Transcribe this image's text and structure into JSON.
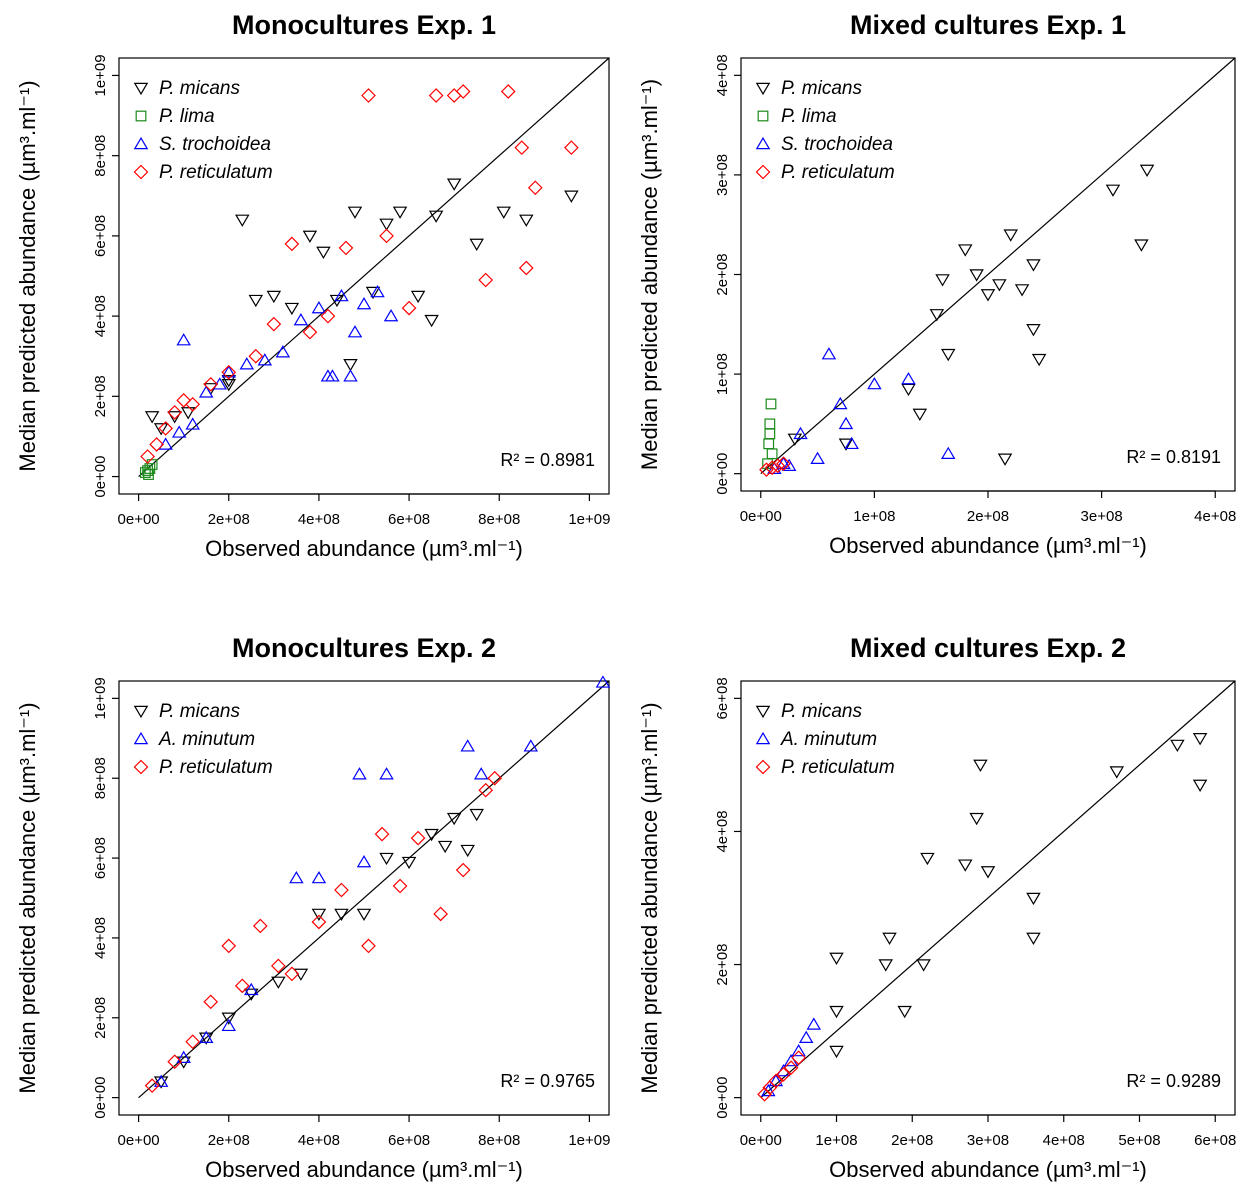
{
  "chart_data": [
    {
      "type": "scatter",
      "title": "Monocultures Exp. 1",
      "xlabel": "Observed abundance (µm³.ml⁻¹)",
      "ylabel": "Median predicted abundance (µm³.ml⁻¹)",
      "xlim": [
        0,
        1000000000
      ],
      "ylim": [
        0,
        1000000000
      ],
      "xticks": [
        "0e+00",
        "2e+08",
        "4e+08",
        "6e+08",
        "8e+08",
        "1e+09"
      ],
      "yticks": [
        "0e+00",
        "2e+08",
        "4e+08",
        "6e+08",
        "8e+08",
        "1e+09"
      ],
      "r2": "0.8981",
      "legend_position": "top-left",
      "series": [
        {
          "name": "P. micans",
          "color": "#000000",
          "marker": "triangle-down",
          "x": [
            30000000.0,
            50000000.0,
            80000000.0,
            110000000.0,
            160000000.0,
            200000000.0,
            230000000.0,
            260000000.0,
            300000000.0,
            340000000.0,
            380000000.0,
            410000000.0,
            440000000.0,
            480000000.0,
            520000000.0,
            550000000.0,
            580000000.0,
            620000000.0,
            660000000.0,
            700000000.0,
            750000000.0,
            810000000.0,
            860000000.0,
            960000000.0,
            200000000.0,
            470000000.0,
            650000000.0
          ],
          "y": [
            150000000.0,
            120000000.0,
            150000000.0,
            160000000.0,
            220000000.0,
            240000000.0,
            640000000.0,
            440000000.0,
            450000000.0,
            420000000.0,
            600000000.0,
            560000000.0,
            440000000.0,
            660000000.0,
            460000000.0,
            630000000.0,
            660000000.0,
            450000000.0,
            650000000.0,
            730000000.0,
            580000000.0,
            660000000.0,
            640000000.0,
            700000000.0,
            230000000.0,
            280000000.0,
            390000000.0
          ]
        },
        {
          "name": "P. lima",
          "color": "#1a8a1a",
          "marker": "square",
          "x": [
            15000000.0,
            20000000.0,
            25000000.0,
            30000000.0,
            22000000.0
          ],
          "y": [
            10000000.0,
            15000000.0,
            20000000.0,
            30000000.0,
            5000000.0
          ]
        },
        {
          "name": "S. trochoidea",
          "color": "#0000ff",
          "marker": "triangle-up",
          "x": [
            60000000.0,
            90000000.0,
            100000000.0,
            120000000.0,
            150000000.0,
            180000000.0,
            200000000.0,
            240000000.0,
            280000000.0,
            320000000.0,
            360000000.0,
            400000000.0,
            420000000.0,
            450000000.0,
            480000000.0,
            500000000.0,
            530000000.0,
            560000000.0,
            430000000.0,
            470000000.0
          ],
          "y": [
            80000000.0,
            110000000.0,
            340000000.0,
            130000000.0,
            210000000.0,
            230000000.0,
            260000000.0,
            280000000.0,
            290000000.0,
            310000000.0,
            390000000.0,
            420000000.0,
            250000000.0,
            450000000.0,
            360000000.0,
            430000000.0,
            460000000.0,
            400000000.0,
            250000000.0,
            250000000.0
          ]
        },
        {
          "name": "P. reticulatum",
          "color": "#ff0000",
          "marker": "diamond",
          "x": [
            20000000.0,
            40000000.0,
            60000000.0,
            80000000.0,
            100000000.0,
            120000000.0,
            160000000.0,
            200000000.0,
            260000000.0,
            300000000.0,
            340000000.0,
            380000000.0,
            420000000.0,
            460000000.0,
            510000000.0,
            550000000.0,
            600000000.0,
            660000000.0,
            700000000.0,
            720000000.0,
            820000000.0,
            850000000.0,
            880000000.0,
            960000000.0,
            770000000.0,
            860000000.0
          ],
          "y": [
            50000000.0,
            80000000.0,
            120000000.0,
            160000000.0,
            190000000.0,
            180000000.0,
            230000000.0,
            260000000.0,
            300000000.0,
            380000000.0,
            580000000.0,
            360000000.0,
            400000000.0,
            570000000.0,
            950000000.0,
            600000000.0,
            420000000.0,
            950000000.0,
            950000000.0,
            960000000.0,
            960000000.0,
            820000000.0,
            720000000.0,
            820000000.0,
            490000000.0,
            520000000.0
          ]
        }
      ]
    },
    {
      "type": "scatter",
      "title": "Mixed cultures Exp. 1",
      "xlabel": "Observed abundance (µm³.ml⁻¹)",
      "ylabel": "Median predicted abundance (µm³.ml⁻¹)",
      "xlim": [
        0,
        400000000
      ],
      "ylim": [
        0,
        400000000
      ],
      "xticks": [
        "0e+00",
        "1e+08",
        "2e+08",
        "3e+08",
        "4e+08"
      ],
      "yticks": [
        "0e+00",
        "1e+08",
        "2e+08",
        "3e+08",
        "4e+08"
      ],
      "r2": "0.8191",
      "legend_position": "top-left",
      "series": [
        {
          "name": "P. micans",
          "color": "#000000",
          "marker": "triangle-down",
          "x": [
            30000000.0,
            75000000.0,
            130000000.0,
            140000000.0,
            155000000.0,
            160000000.0,
            165000000.0,
            180000000.0,
            190000000.0,
            200000000.0,
            210000000.0,
            220000000.0,
            230000000.0,
            240000000.0,
            245000000.0,
            310000000.0,
            340000000.0,
            335000000.0,
            215000000.0,
            240000000.0
          ],
          "y": [
            35000000.0,
            30000000.0,
            85000000.0,
            60000000.0,
            160000000.0,
            195000000.0,
            120000000.0,
            225000000.0,
            200000000.0,
            180000000.0,
            190000000.0,
            240000000.0,
            185000000.0,
            210000000.0,
            115000000.0,
            285000000.0,
            305000000.0,
            230000000.0,
            15000000.0,
            145000000.0
          ]
        },
        {
          "name": "P. lima",
          "color": "#1a8a1a",
          "marker": "square",
          "x": [
            6000000.0,
            7000000.0,
            8000000.0,
            9000000.0,
            10000000.0,
            8000000.0
          ],
          "y": [
            10000000.0,
            30000000.0,
            50000000.0,
            70000000.0,
            20000000.0,
            40000000.0
          ]
        },
        {
          "name": "S. trochoidea",
          "color": "#0000ff",
          "marker": "triangle-up",
          "x": [
            20000000.0,
            35000000.0,
            50000000.0,
            60000000.0,
            70000000.0,
            75000000.0,
            80000000.0,
            100000000.0,
            130000000.0,
            165000000.0,
            12000000.0,
            25000000.0
          ],
          "y": [
            10000000.0,
            40000000.0,
            15000000.0,
            120000000.0,
            70000000.0,
            50000000.0,
            30000000.0,
            90000000.0,
            95000000.0,
            20000000.0,
            5000000.0,
            8000000.0
          ]
        },
        {
          "name": "P. reticulatum",
          "color": "#ff0000",
          "marker": "diamond",
          "x": [
            5000000.0,
            10000000.0,
            15000000.0,
            20000000.0
          ],
          "y": [
            4000000.0,
            6000000.0,
            8000000.0,
            10000000.0
          ]
        }
      ]
    },
    {
      "type": "scatter",
      "title": "Monocultures Exp. 2",
      "xlabel": "Observed abundance (µm³.ml⁻¹)",
      "ylabel": "Median predicted abundance (µm³.ml⁻¹)",
      "xlim": [
        0,
        1000000000
      ],
      "ylim": [
        0,
        1000000000
      ],
      "xticks": [
        "0e+00",
        "2e+08",
        "4e+08",
        "6e+08",
        "8e+08",
        "1e+09"
      ],
      "yticks": [
        "0e+00",
        "2e+08",
        "4e+08",
        "6e+08",
        "8e+08",
        "1e+09"
      ],
      "r2": "0.9765",
      "legend_position": "top-left",
      "series": [
        {
          "name": "P. micans",
          "color": "#000000",
          "marker": "triangle-down",
          "x": [
            50000000.0,
            100000000.0,
            150000000.0,
            200000000.0,
            250000000.0,
            310000000.0,
            360000000.0,
            400000000.0,
            450000000.0,
            500000000.0,
            550000000.0,
            600000000.0,
            650000000.0,
            700000000.0,
            730000000.0,
            750000000.0,
            680000000.0
          ],
          "y": [
            40000000.0,
            90000000.0,
            150000000.0,
            200000000.0,
            260000000.0,
            290000000.0,
            310000000.0,
            460000000.0,
            460000000.0,
            460000000.0,
            600000000.0,
            590000000.0,
            660000000.0,
            700000000.0,
            620000000.0,
            710000000.0,
            630000000.0
          ]
        },
        {
          "name": "A. minutum",
          "color": "#0000ff",
          "marker": "triangle-up",
          "x": [
            50000000.0,
            100000000.0,
            150000000.0,
            200000000.0,
            250000000.0,
            350000000.0,
            400000000.0,
            490000000.0,
            550000000.0,
            730000000.0,
            760000000.0,
            870000000.0,
            1030000000.0,
            500000000.0
          ],
          "y": [
            40000000.0,
            100000000.0,
            150000000.0,
            180000000.0,
            270000000.0,
            550000000.0,
            550000000.0,
            810000000.0,
            810000000.0,
            880000000.0,
            810000000.0,
            880000000.0,
            1040000000.0,
            590000000.0
          ]
        },
        {
          "name": "P. reticulatum",
          "color": "#ff0000",
          "marker": "diamond",
          "x": [
            30000000.0,
            80000000.0,
            120000000.0,
            160000000.0,
            200000000.0,
            230000000.0,
            270000000.0,
            310000000.0,
            340000000.0,
            400000000.0,
            450000000.0,
            510000000.0,
            540000000.0,
            580000000.0,
            620000000.0,
            670000000.0,
            720000000.0,
            770000000.0,
            790000000.0
          ],
          "y": [
            30000000.0,
            90000000.0,
            140000000.0,
            240000000.0,
            380000000.0,
            280000000.0,
            430000000.0,
            330000000.0,
            310000000.0,
            440000000.0,
            520000000.0,
            380000000.0,
            660000000.0,
            530000000.0,
            650000000.0,
            460000000.0,
            570000000.0,
            770000000.0,
            800000000.0
          ]
        }
      ]
    },
    {
      "type": "scatter",
      "title": "Mixed cultures Exp. 2",
      "xlabel": "Observed abundance (µm³.ml⁻¹)",
      "ylabel": "Median predicted abundance (µm³.ml⁻¹)",
      "xlim": [
        0,
        600000000
      ],
      "ylim": [
        0,
        600000000
      ],
      "xticks": [
        "0e+00",
        "1e+08",
        "2e+08",
        "3e+08",
        "4e+08",
        "5e+08",
        "6e+08"
      ],
      "yticks": [
        "0e+00",
        "2e+08",
        "4e+08",
        "6e+08"
      ],
      "r2": "0.9289",
      "legend_position": "top-left",
      "series": [
        {
          "name": "P. micans",
          "color": "#000000",
          "marker": "triangle-down",
          "x": [
            100000000.0,
            100000000.0,
            165000000.0,
            190000000.0,
            215000000.0,
            220000000.0,
            270000000.0,
            285000000.0,
            290000000.0,
            300000000.0,
            360000000.0,
            360000000.0,
            470000000.0,
            550000000.0,
            580000000.0,
            580000000.0,
            100000000.0,
            170000000.0
          ],
          "y": [
            210000000.0,
            70000000.0,
            200000000.0,
            130000000.0,
            200000000.0,
            360000000.0,
            350000000.0,
            420000000.0,
            500000000.0,
            340000000.0,
            240000000.0,
            300000000.0,
            490000000.0,
            530000000.0,
            540000000.0,
            470000000.0,
            130000000.0,
            240000000.0
          ]
        },
        {
          "name": "A. minutum",
          "color": "#0000ff",
          "marker": "triangle-up",
          "x": [
            10000000.0,
            20000000.0,
            30000000.0,
            40000000.0,
            50000000.0,
            60000000.0,
            70000000.0
          ],
          "y": [
            10000000.0,
            25000000.0,
            40000000.0,
            55000000.0,
            70000000.0,
            90000000.0,
            110000000.0
          ]
        },
        {
          "name": "P. reticulatum",
          "color": "#ff0000",
          "marker": "diamond",
          "x": [
            5000000.0,
            12000000.0,
            20000000.0,
            30000000.0,
            40000000.0,
            50000000.0
          ],
          "y": [
            5000000.0,
            15000000.0,
            25000000.0,
            35000000.0,
            45000000.0,
            60000000.0
          ]
        }
      ]
    }
  ]
}
